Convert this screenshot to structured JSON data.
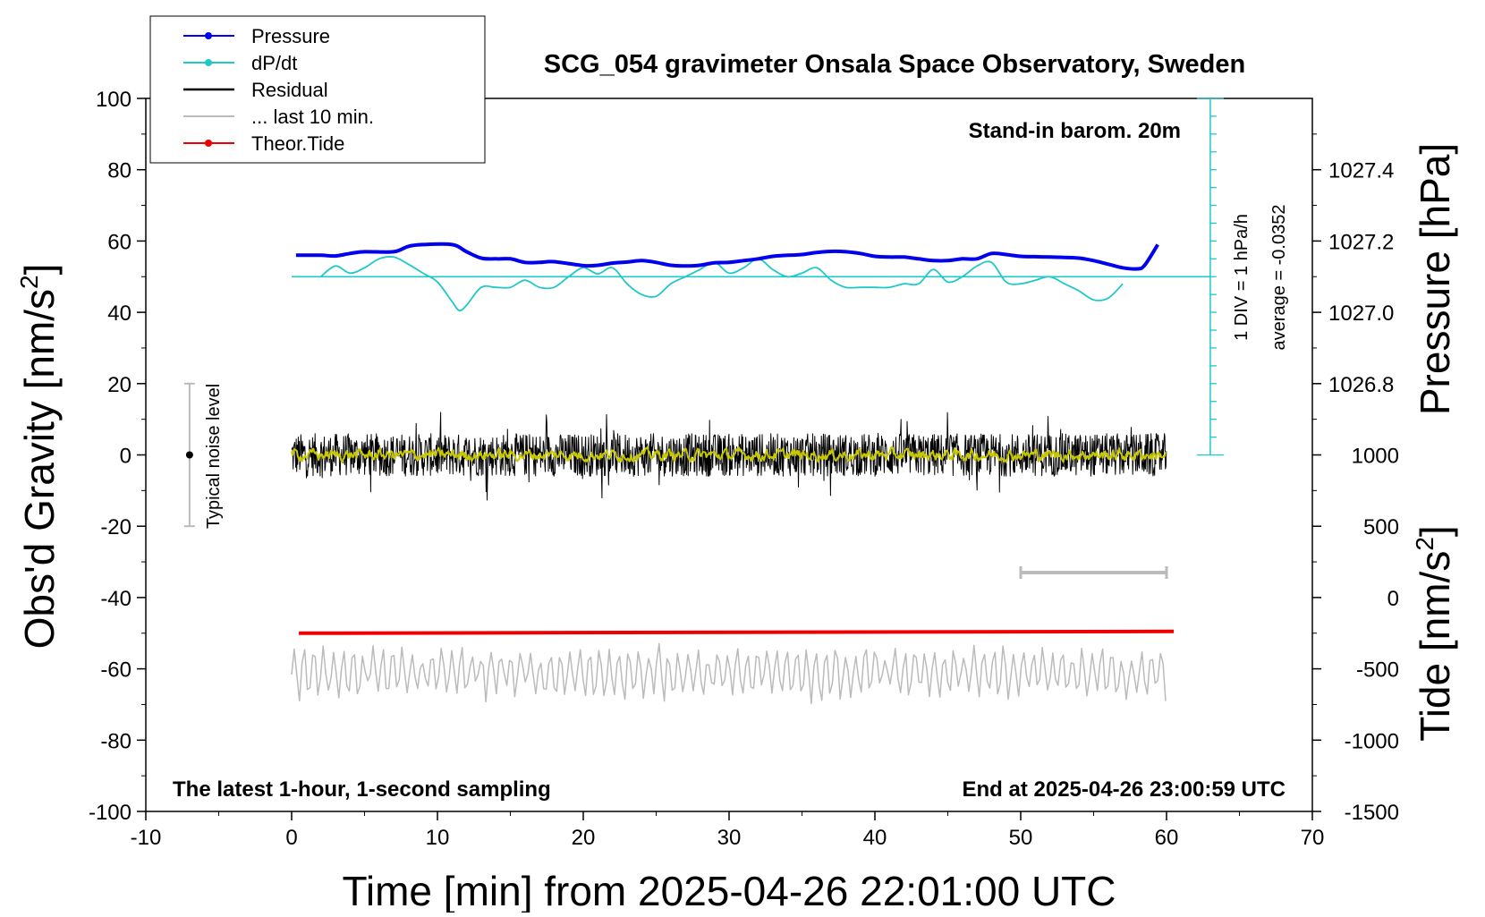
{
  "chart_data": {
    "type": "line",
    "title": "SCG_054 gravimeter Onsala Space Observatory, Sweden",
    "xlabel": "Time [min] from 2025-04-26 22:01:00 UTC",
    "ylabel_left_main": "Obs'd Gravity [nm/s",
    "ylabel_left_sup": "2",
    "ylabel_left_end": "]",
    "ylabel_right_top": "Pressure [hPa]",
    "ylabel_right_bottom_main": "Tide [nm/s",
    "ylabel_right_bottom_sup": "2",
    "ylabel_right_bottom_end": "]",
    "xlim": [
      -10,
      70
    ],
    "ylim": [
      -100,
      100
    ],
    "x_ticks": [
      "-10",
      "0",
      "10",
      "20",
      "30",
      "40",
      "50",
      "60",
      "70"
    ],
    "y_ticks": [
      "100",
      "80",
      "60",
      "40",
      "20",
      "0",
      "-20",
      "-40",
      "-60",
      "-80",
      "-100"
    ],
    "pressure_ticks": [
      "1027.4",
      "1027.2",
      "1027.0",
      "1026.8"
    ],
    "pressure_ticks_values": [
      1027.4,
      1027.2,
      1027.0,
      1026.8
    ],
    "pressure_axis_map": {
      "hpa": [
        1027.0,
        1027.4
      ],
      "gravity": [
        40,
        80
      ]
    },
    "tide_ticks": [
      "1000",
      "500",
      "0",
      "-500",
      "-1000",
      "-1500"
    ],
    "tide_ticks_values": [
      1000,
      500,
      0,
      -500,
      -1000,
      -1500
    ],
    "tide_axis_map": {
      "tide": [
        -1500,
        1000
      ],
      "gravity": [
        -100,
        0
      ]
    },
    "legend": [
      {
        "label": "Pressure",
        "color": "#0000ee",
        "marker": true
      },
      {
        "label": "dP/dt",
        "color": "#20c8c8",
        "marker": true
      },
      {
        "label": "Residual",
        "color": "#000000",
        "marker": false
      },
      {
        "label": "... last 10 min.",
        "color": "#bbbbbb",
        "marker": false
      },
      {
        "label": "Theor.Tide",
        "color": "#ee0000",
        "marker": true
      }
    ],
    "annotations": {
      "stand_in": "Stand-in barom. 20m",
      "latest": "The latest 1-hour, 1-second sampling",
      "end_at": "End at 2025-04-26 23:00:59 UTC",
      "div_label": "1 DIV = 1 hPa/h",
      "average_label": "average = -0.0352",
      "noise_label": "Typical noise level"
    },
    "series": [
      {
        "name": "Pressure",
        "color": "#0000ee",
        "x": [
          0.3,
          2,
          3,
          4,
          5,
          7,
          8,
          9,
          11,
          12,
          13,
          14,
          15,
          16,
          17,
          18,
          20,
          21,
          22,
          23,
          24,
          25,
          26,
          27,
          28,
          29,
          30,
          31,
          32,
          33,
          34,
          35,
          36,
          37,
          38,
          39,
          40,
          41,
          42,
          43,
          44,
          45,
          46,
          47,
          48,
          49,
          50,
          51,
          52,
          53,
          54,
          55,
          56,
          57,
          58,
          58.5,
          59.4
        ],
        "y": [
          56,
          56,
          55.8,
          56.5,
          57,
          57,
          58.5,
          59,
          59,
          57,
          55.2,
          55,
          55,
          54,
          54,
          54.2,
          53.1,
          53.2,
          53.8,
          54.1,
          54.5,
          54,
          53.2,
          53,
          53.2,
          53.9,
          54,
          54.5,
          55,
          55.7,
          56,
          56.2,
          56.8,
          57.1,
          57,
          56.5,
          55.7,
          55.5,
          55.5,
          55,
          54.5,
          54.5,
          55,
          55,
          56.5,
          56.2,
          55.7,
          55.6,
          55.5,
          55.4,
          55.2,
          54.5,
          53.5,
          52.5,
          52.2,
          53.2,
          59
        ]
      },
      {
        "name": "dP/dt",
        "color": "#20c8c8",
        "x": [
          2,
          3,
          4,
          5,
          6,
          7,
          8,
          9,
          10,
          11,
          11.5,
          12,
          13,
          14,
          15,
          16,
          17,
          18,
          19,
          20,
          21,
          22,
          23,
          24,
          25,
          26,
          27,
          28,
          29,
          30,
          31,
          32,
          33,
          34,
          35,
          36,
          37,
          38,
          39,
          40,
          41,
          42,
          43,
          44,
          45,
          46,
          47,
          48,
          49,
          50,
          51,
          52,
          53,
          54,
          55,
          56,
          57
        ],
        "y": [
          50,
          53,
          51,
          52.5,
          55,
          55.5,
          53.5,
          51,
          48.5,
          43,
          40.5,
          42,
          47,
          47,
          47,
          49,
          47,
          47,
          50,
          52.5,
          50.8,
          52.5,
          48,
          45,
          44.5,
          48,
          50,
          52,
          54,
          51,
          52.5,
          55,
          52,
          50,
          51,
          52.5,
          49,
          47,
          47,
          47,
          47,
          48,
          48,
          52,
          48.5,
          50,
          53,
          54,
          48.5,
          48,
          49,
          50,
          48,
          46,
          43.5,
          44,
          48
        ]
      },
      {
        "name": "dP/dt average",
        "color": "#20c8c8",
        "x": [
          0,
          63
        ],
        "y": [
          50,
          50
        ]
      },
      {
        "name": "Residual",
        "color": "#000000",
        "x_range": [
          0,
          60
        ],
        "center": 0,
        "typical_amplitude": 6,
        "max_amplitude": 13
      },
      {
        "name": "Residual smoothed",
        "color": "#c8c800",
        "x_range": [
          0,
          60
        ],
        "center": 0,
        "typical_amplitude": 1.5
      },
      {
        "name": "... last 10 min.",
        "color": "#bbbbbb",
        "x_range": [
          0,
          60
        ],
        "center": -61,
        "typical_amplitude": 6,
        "max_amplitude": 10
      },
      {
        "name": "Theor.Tide",
        "color": "#ee0000",
        "x": [
          0.5,
          60.5
        ],
        "y": [
          -50,
          -49.5
        ]
      }
    ],
    "scale_bar_dpdt": {
      "x": 63,
      "y_range": [
        0,
        100
      ],
      "ticks_every": 5
    },
    "scale_bar_last10": {
      "x_range": [
        50,
        60
      ],
      "y": -33
    },
    "noise_bar": {
      "x": -7,
      "y_range": [
        -20,
        20
      ],
      "center": 0
    }
  }
}
